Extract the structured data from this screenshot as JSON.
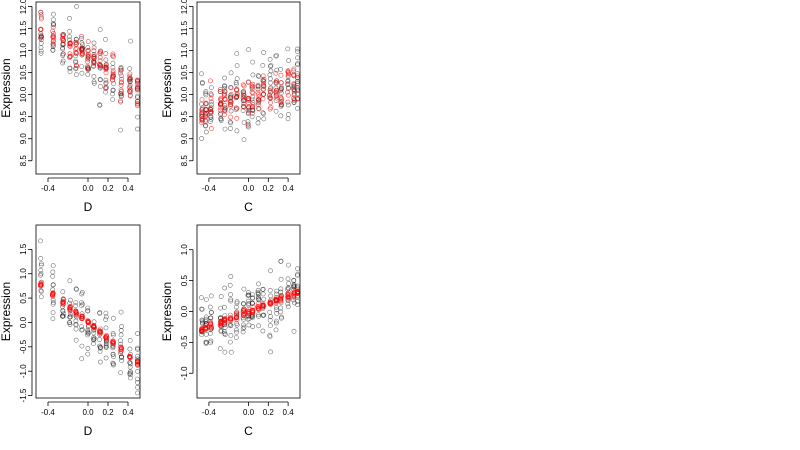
{
  "chart_data": [
    {
      "type": "scatter",
      "xlabel": "D",
      "ylabel": "Expression",
      "xlim": [
        -0.52,
        0.52
      ],
      "ylim": [
        8.2,
        12.1
      ],
      "xticks": [
        -0.4,
        0.0,
        0.2,
        0.4
      ],
      "xtick_labels": [
        "-0.4",
        "0.0",
        "0.2",
        "0.4"
      ],
      "yticks": [
        8.5,
        9.0,
        9.5,
        10.0,
        10.5,
        11.0,
        11.5,
        12.0
      ],
      "ytick_labels": [
        "8.5",
        "9.0",
        "9.5",
        "10.0",
        "10.5",
        "11.0",
        "11.5",
        "12.0"
      ],
      "x_groups": [
        -0.47,
        -0.35,
        -0.25,
        -0.18,
        -0.12,
        -0.06,
        0.0,
        0.06,
        0.12,
        0.18,
        0.25,
        0.33,
        0.42,
        0.5
      ],
      "observed": {
        "trend": [
          10.8,
          -1.5
        ],
        "spread": [
          0.4,
          0.85
        ],
        "color": "#000000"
      },
      "fitted": {
        "trend": [
          10.85,
          -1.5
        ],
        "spread": [
          0.12,
          0.55
        ],
        "color": "#ff0000"
      }
    },
    {
      "type": "scatter",
      "xlabel": "C",
      "ylabel": "Expression",
      "xlim": [
        -0.52,
        0.52
      ],
      "ylim": [
        8.2,
        12.1
      ],
      "xticks": [
        -0.4,
        0.0,
        0.2,
        0.4
      ],
      "xtick_labels": [
        "-0.4",
        "0.0",
        "0.2",
        "0.4"
      ],
      "yticks": [
        8.5,
        9.0,
        9.5,
        10.0,
        10.5,
        11.0,
        11.5,
        12.0
      ],
      "ytick_labels": [
        "8.5",
        "9.0",
        "9.5",
        "10.0",
        "10.5",
        "11.0",
        "11.5",
        "12.0"
      ],
      "x_groups": [
        -0.47,
        -0.43,
        -0.38,
        -0.28,
        -0.24,
        -0.18,
        -0.12,
        -0.05,
        0.0,
        0.04,
        0.1,
        0.15,
        0.22,
        0.28,
        0.33,
        0.4,
        0.46,
        0.5
      ],
      "observed": {
        "trend": [
          9.95,
          0.65
        ],
        "spread": [
          0.6,
          0.8
        ],
        "color": "#000000"
      },
      "fitted": {
        "trend": [
          9.95,
          0.65
        ],
        "spread": [
          0.35,
          0.4
        ],
        "color": "#ff0000"
      }
    },
    {
      "type": "scatter",
      "xlabel": "D",
      "ylabel": "Expression",
      "xlim": [
        -0.52,
        0.52
      ],
      "ylim": [
        -1.55,
        2.0
      ],
      "xticks": [
        -0.4,
        0.0,
        0.2,
        0.4
      ],
      "xtick_labels": [
        "-0.4",
        "0.0",
        "0.2",
        "0.4"
      ],
      "yticks": [
        -1.5,
        -1.0,
        -0.5,
        0.0,
        0.5,
        1.0,
        1.5
      ],
      "ytick_labels": [
        "-1.5",
        "-1.0",
        "-0.5",
        "0.0",
        "0.5",
        "1.0",
        "1.5"
      ],
      "x_groups": [
        -0.47,
        -0.35,
        -0.25,
        -0.18,
        -0.12,
        -0.06,
        0.0,
        0.06,
        0.12,
        0.18,
        0.25,
        0.33,
        0.42,
        0.5
      ],
      "observed": {
        "trend": [
          -0.05,
          -1.65
        ],
        "spread": [
          0.35,
          0.75
        ],
        "color": "#000000"
      },
      "fitted": {
        "trend": [
          0.0,
          -1.65
        ],
        "spread": [
          0.04,
          0.05
        ],
        "color": "#ff0000"
      }
    },
    {
      "type": "scatter",
      "xlabel": "C",
      "ylabel": "Expression",
      "xlim": [
        -0.52,
        0.52
      ],
      "ylim": [
        -1.4,
        1.4
      ],
      "xticks": [
        -0.4,
        0.0,
        0.2,
        0.4
      ],
      "xtick_labels": [
        "-0.4",
        "0.0",
        "0.2",
        "0.4"
      ],
      "yticks": [
        -1.0,
        -0.5,
        0.0,
        0.5,
        1.0
      ],
      "ytick_labels": [
        "-1.0",
        "-0.5",
        "0.0",
        "0.5",
        "1.0"
      ],
      "x_groups": [
        -0.47,
        -0.43,
        -0.38,
        -0.28,
        -0.24,
        -0.18,
        -0.12,
        -0.05,
        0.0,
        0.04,
        0.1,
        0.15,
        0.22,
        0.28,
        0.33,
        0.4,
        0.46,
        0.5
      ],
      "observed": {
        "trend": [
          0.0,
          0.62
        ],
        "spread": [
          0.3,
          0.55
        ],
        "color": "#000000"
      },
      "fitted": {
        "trend": [
          0.0,
          0.62
        ],
        "spread": [
          0.04,
          0.05
        ],
        "color": "#ff0000"
      }
    }
  ]
}
